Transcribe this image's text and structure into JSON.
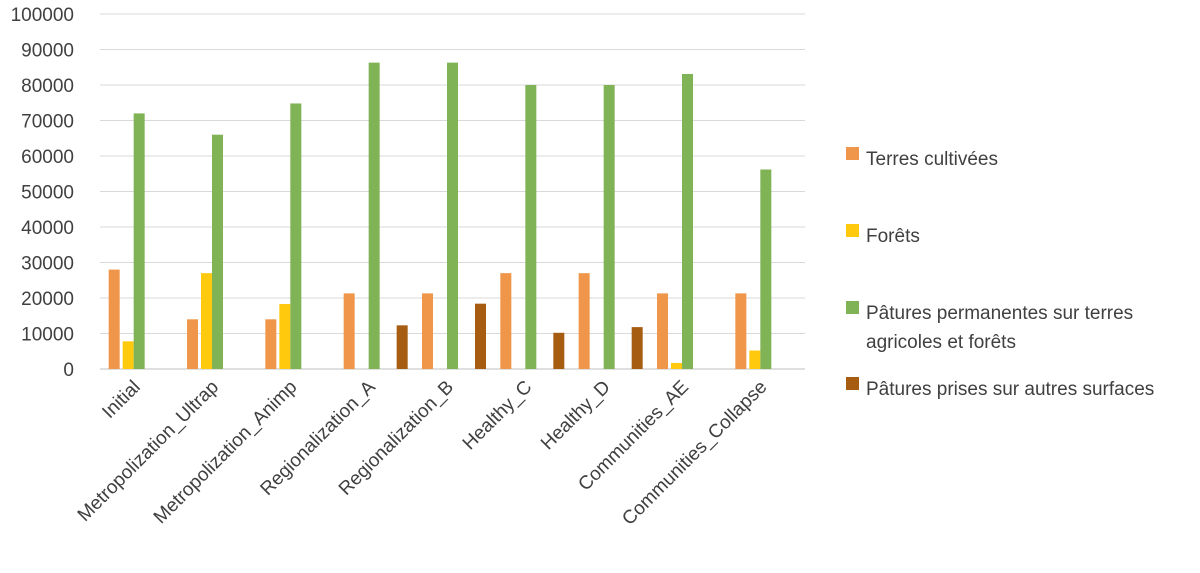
{
  "chart_data": {
    "type": "bar",
    "title": "",
    "xlabel": "",
    "ylabel": "",
    "ylim": [
      0,
      100000
    ],
    "ytick_step": 10000,
    "grid": true,
    "legend_position": "right",
    "categories": [
      "Initial",
      "Metropolization_Ultrap",
      "Metropolization_Animp",
      "Regionalization_A",
      "Regionalization_B",
      "Healthy_C",
      "Healthy_D",
      "Communities_AE",
      "Communities_Collapse"
    ],
    "series": [
      {
        "name": "Terres cultivées",
        "color": "#f0964a",
        "values": [
          28000,
          14000,
          14000,
          21300,
          21300,
          27000,
          27000,
          21300,
          21300
        ]
      },
      {
        "name": "Forêts",
        "color": "#ffc90e",
        "values": [
          7800,
          27000,
          18300,
          0,
          0,
          0,
          0,
          1700,
          5200
        ]
      },
      {
        "name": "Pâtures permanentes sur terres agricoles et forêts",
        "color": "#7fb356",
        "values": [
          72000,
          66000,
          74800,
          86300,
          86300,
          80000,
          80000,
          83100,
          56200
        ]
      },
      {
        "name": "Pâtures prises sur autres surfaces",
        "color": "#a65d11",
        "values": [
          0,
          0,
          0,
          12300,
          18400,
          10200,
          11800,
          0,
          0
        ]
      }
    ],
    "legend_lines": [
      [
        "Terres cultivées"
      ],
      [
        "Forêts"
      ],
      [
        "Pâtures permanentes sur terres",
        "agricoles et forêts"
      ],
      [
        "Pâtures prises sur autres surfaces"
      ]
    ]
  }
}
